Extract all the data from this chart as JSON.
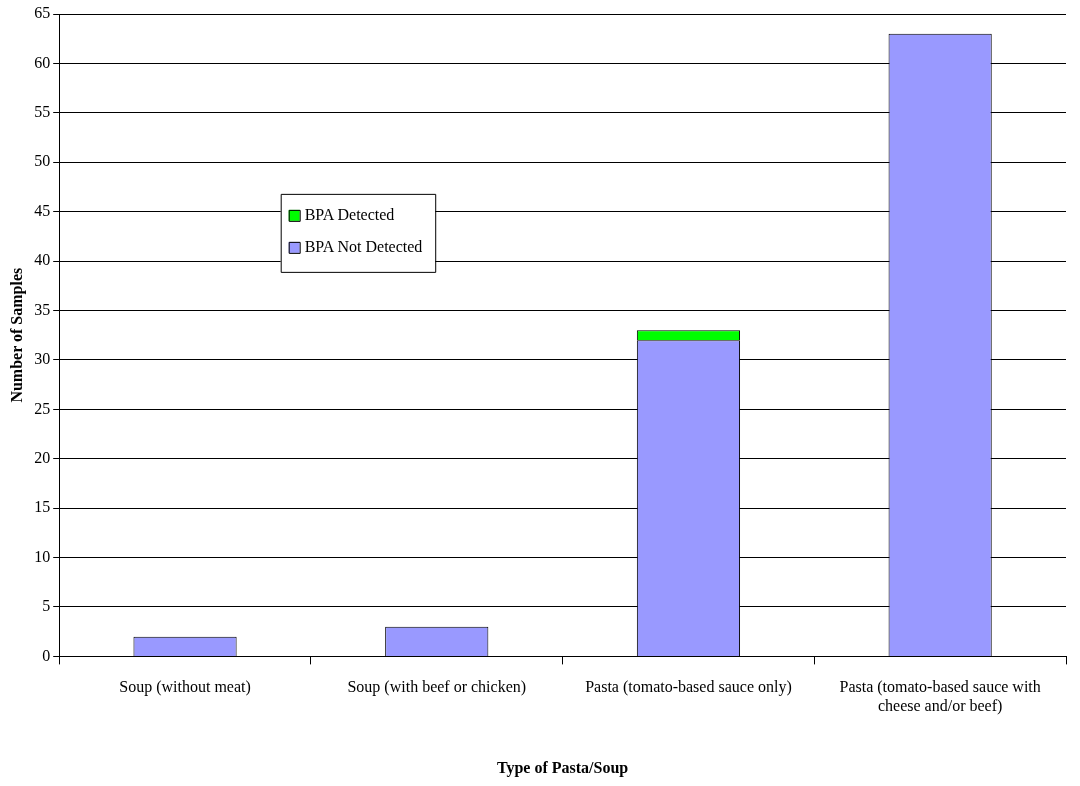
{
  "chart_data": {
    "type": "bar",
    "stacked": true,
    "xlabel": "Type of Pasta/Soup",
    "ylabel": "Number of Samples",
    "categories": [
      "Soup (without meat)",
      "Soup (with beef or chicken)",
      "Pasta (tomato-based sauce only)",
      "Pasta (tomato-based sauce with cheese and/or beef)"
    ],
    "series": [
      {
        "name": "BPA Not Detected",
        "color": "#9999ff",
        "values": [
          2,
          3,
          32,
          63
        ]
      },
      {
        "name": "BPA Detected",
        "color": "#00ff00",
        "values": [
          0,
          0,
          1,
          0
        ]
      }
    ],
    "ylim": [
      0,
      65
    ],
    "yticks": [
      0,
      5,
      10,
      15,
      20,
      25,
      30,
      35,
      40,
      45,
      50,
      55,
      60,
      65
    ],
    "grid": "y",
    "legend": "left"
  }
}
